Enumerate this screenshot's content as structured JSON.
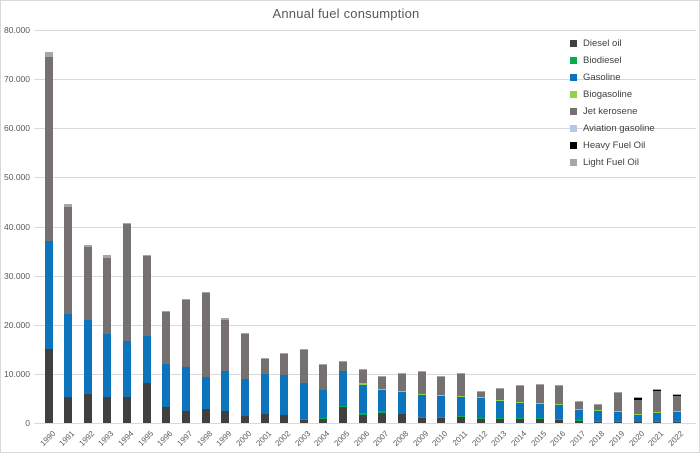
{
  "chart_data": {
    "type": "bar",
    "stacked": true,
    "title": "Annual fuel consumption",
    "xlabel": "",
    "ylabel": "",
    "ylim": [
      0,
      80000
    ],
    "grid": "horizontal",
    "legend_position": "top-right",
    "y_ticks": [
      {
        "value": 0,
        "label": "0"
      },
      {
        "value": 10000,
        "label": "10.000"
      },
      {
        "value": 20000,
        "label": "20.000"
      },
      {
        "value": 30000,
        "label": "30.000"
      },
      {
        "value": 40000,
        "label": "40.000"
      },
      {
        "value": 50000,
        "label": "50.000"
      },
      {
        "value": 60000,
        "label": "60.000"
      },
      {
        "value": 70000,
        "label": "70.000"
      },
      {
        "value": 80000,
        "label": "80.000"
      }
    ],
    "categories": [
      "1990",
      "1991",
      "1992",
      "1993",
      "1994",
      "1995",
      "1996",
      "1997",
      "1998",
      "1999",
      "2000",
      "2001",
      "2002",
      "2003",
      "2004",
      "2005",
      "2006",
      "2007",
      "2008",
      "2009",
      "2010",
      "2011",
      "2012",
      "2013",
      "2014",
      "2015",
      "2016",
      "2017",
      "2018",
      "2019",
      "2020",
      "2021",
      "2022"
    ],
    "series": [
      {
        "name": "Diesel oil",
        "color": "#404040",
        "values": [
          15000,
          5200,
          6000,
          5300,
          5300,
          8100,
          3300,
          2500,
          2800,
          2400,
          1500,
          1900,
          1600,
          800,
          900,
          3200,
          1700,
          2100,
          1900,
          1100,
          1200,
          1400,
          750,
          900,
          900,
          900,
          750,
          550,
          350,
          300,
          200,
          300,
          250
        ]
      },
      {
        "name": "Biodiesel",
        "color": "#00B050",
        "values": [
          0,
          0,
          0,
          0,
          0,
          0,
          0,
          0,
          0,
          0,
          0,
          0,
          0,
          100,
          200,
          200,
          400,
          300,
          0,
          100,
          100,
          100,
          250,
          200,
          200,
          200,
          150,
          150,
          150,
          100,
          0,
          100,
          100
        ]
      },
      {
        "name": "Gasoline",
        "color": "#0C74BC",
        "values": [
          22000,
          17000,
          15000,
          12900,
          11400,
          9700,
          8700,
          8900,
          6500,
          8200,
          7400,
          8000,
          8200,
          7200,
          5600,
          7100,
          5700,
          4300,
          4400,
          4600,
          4200,
          3700,
          4000,
          3400,
          3000,
          2800,
          2800,
          1900,
          1900,
          1800,
          1500,
          1700,
          1800
        ]
      },
      {
        "name": "Biogasoline",
        "color": "#92D050",
        "values": [
          0,
          0,
          0,
          0,
          0,
          0,
          0,
          0,
          0,
          0,
          0,
          0,
          0,
          0,
          0,
          0,
          300,
          200,
          200,
          200,
          200,
          200,
          250,
          200,
          200,
          200,
          200,
          200,
          200,
          200,
          100,
          150,
          200
        ]
      },
      {
        "name": "Jet kerosene",
        "color": "#767171",
        "values": [
          37500,
          21800,
          14800,
          15400,
          23800,
          16100,
          10500,
          13600,
          17100,
          10400,
          9200,
          3200,
          4300,
          6800,
          5200,
          2000,
          2600,
          2500,
          3400,
          4400,
          3600,
          4500,
          1200,
          2300,
          3300,
          3700,
          3700,
          1500,
          1100,
          3800,
          2800,
          4300,
          3200
        ]
      },
      {
        "name": "Aviation gasoline",
        "color": "#B4C7E7",
        "values": [
          0,
          0,
          0,
          0,
          0,
          0,
          0,
          0,
          0,
          0,
          0,
          0,
          0,
          0,
          0,
          0,
          0,
          0,
          0,
          0,
          0,
          0,
          0,
          0,
          0,
          0,
          0,
          0,
          0,
          0,
          0,
          0,
          0
        ]
      },
      {
        "name": "Heavy Fuel Oil",
        "color": "#000000",
        "values": [
          0,
          0,
          0,
          0,
          0,
          0,
          0,
          0,
          0,
          0,
          0,
          0,
          0,
          0,
          0,
          0,
          0,
          0,
          0,
          0,
          0,
          0,
          0,
          0,
          0,
          0,
          0,
          0,
          0,
          0,
          600,
          300,
          300
        ]
      },
      {
        "name": "Light Fuel Oil",
        "color": "#A6A6A6",
        "values": [
          1000,
          500,
          500,
          500,
          300,
          300,
          300,
          300,
          300,
          300,
          300,
          200,
          200,
          200,
          200,
          200,
          200,
          200,
          200,
          200,
          200,
          200,
          150,
          200,
          200,
          200,
          200,
          200,
          200,
          200,
          100,
          50,
          50
        ]
      }
    ]
  }
}
